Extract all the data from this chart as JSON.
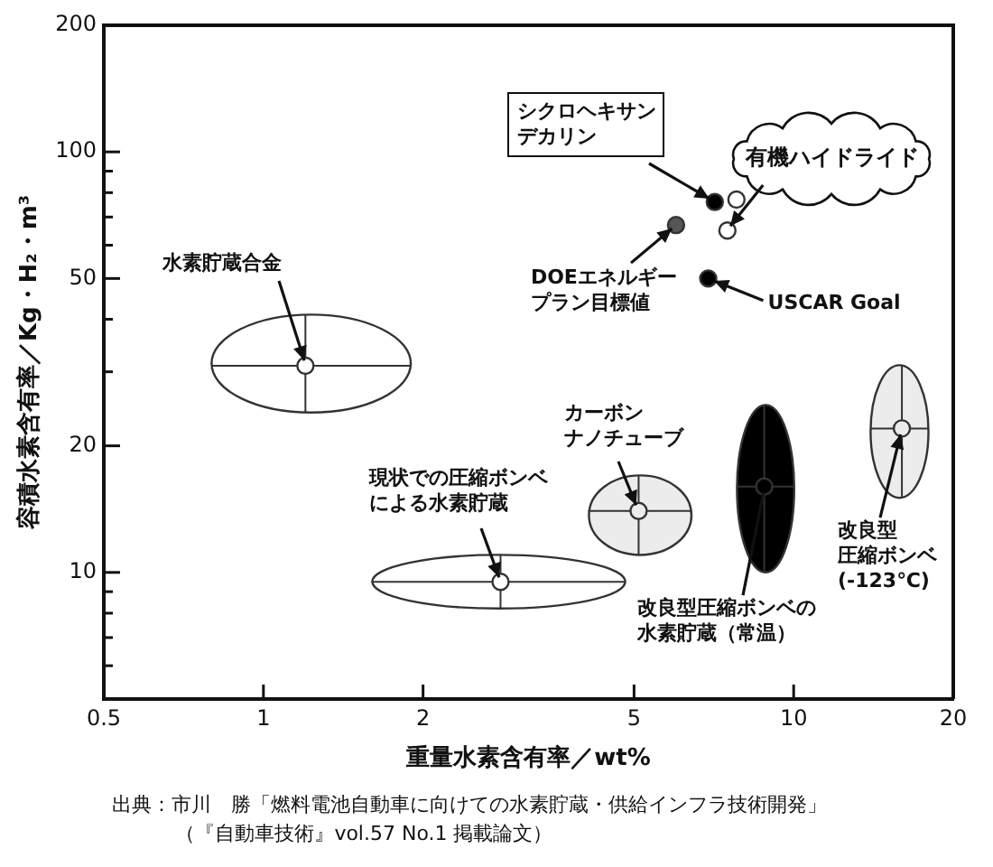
{
  "chart_data": {
    "type": "scatter",
    "xlabel": "重量水素含有率／wt%",
    "ylabel": "容積水素含有率／Kg・H₂・m³",
    "log": "xy",
    "xlim": [
      0.5,
      20
    ],
    "xticks": [
      0.5,
      1,
      2,
      5,
      10,
      20
    ],
    "ylim": [
      5,
      200
    ],
    "yticks": [
      200,
      100,
      {
        "value": 90,
        "label": null
      },
      {
        "value": 80,
        "label": null
      },
      {
        "value": 70,
        "label": null
      },
      {
        "value": 60,
        "label": null
      },
      50,
      {
        "value": 40,
        "label": null
      },
      {
        "value": 30,
        "label": null
      },
      20,
      10,
      {
        "value": 9,
        "label": null
      },
      {
        "value": 8,
        "label": null
      },
      {
        "value": 7,
        "label": null
      },
      {
        "value": 6,
        "label": null
      }
    ],
    "marker": "circle",
    "x": [
      1.2,
      2.8,
      5.1,
      8.8,
      16,
      6.0,
      7.1,
      7.8,
      7.5,
      6.9
    ],
    "series": [
      {
        "color": "#333333",
        "colors": [
          "#ffffff",
          "#ffffff",
          "#ececec",
          "#000000",
          "#ececec",
          "#555555",
          "#000000",
          "#ffffff",
          "#ffffff",
          "#000000"
        ],
        "values": [
          31,
          9.5,
          14,
          16,
          22,
          67,
          76,
          77,
          65,
          50
        ],
        "xerrors": [
          [
            0.8,
            1.9
          ],
          [
            1.6,
            4.8
          ],
          [
            4.1,
            6.4
          ],
          [
            7.8,
            10
          ],
          [
            14,
            18
          ],
          null,
          null,
          null,
          null,
          null
        ],
        "errors": [
          [
            24,
            41
          ],
          [
            8.2,
            11
          ],
          [
            11,
            17
          ],
          [
            10,
            25
          ],
          [
            15,
            31
          ],
          null,
          null,
          null,
          null,
          null
        ]
      }
    ],
    "annotations": [
      {
        "text": "水素貯蔵合金",
        "x": 1.2,
        "y": 31
      },
      {
        "text": "現状での圧縮ボンベによる水素貯蔵",
        "x": 2.8,
        "y": 9.5
      },
      {
        "text": "カーボンナノチューブ",
        "x": 5.1,
        "y": 14
      },
      {
        "text": "改良型圧縮ボンベの水素貯蔵（常温）",
        "x": 8.8,
        "y": 16
      },
      {
        "text": "改良型圧縮ボンベ(-123℃)",
        "x": 16,
        "y": 22
      },
      {
        "text": "DOEエネルギープラン目標値",
        "x": 6.0,
        "y": 67
      },
      {
        "text": "USCAR Goal",
        "x": 6.9,
        "y": 50
      },
      {
        "text": "シクロヘキサンデカリン",
        "x": 7.1,
        "y": 76
      },
      {
        "text": "有機ハイドライド",
        "x": 7.5,
        "y": 65
      },
      "出典：市川　勝「燃料電池自動車に向けての水素貯蔵・供給インフラ技術開発」",
      "（『自動車技術』vol.57 No.1 掲載論文）"
    ]
  }
}
